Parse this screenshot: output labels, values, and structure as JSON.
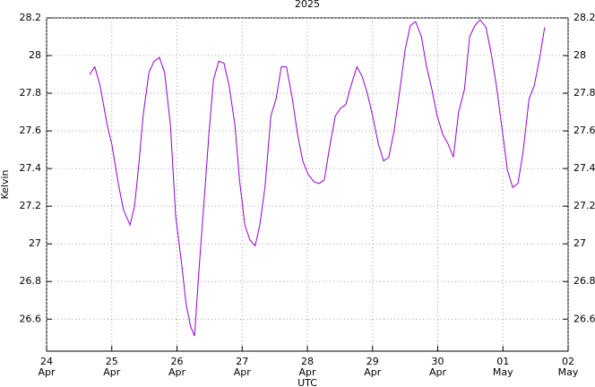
{
  "chart_data": {
    "type": "line",
    "title": "2025",
    "xlabel": "UTC",
    "ylabel": "Kelvin",
    "xlim": [
      0,
      8
    ],
    "xticks": [
      {
        "value": 0,
        "label": "24 Apr"
      },
      {
        "value": 1,
        "label": "25 Apr"
      },
      {
        "value": 2,
        "label": "26 Apr"
      },
      {
        "value": 3,
        "label": "27 Apr"
      },
      {
        "value": 4,
        "label": "28 Apr"
      },
      {
        "value": 5,
        "label": "29 Apr"
      },
      {
        "value": 6,
        "label": "30 Apr"
      },
      {
        "value": 7,
        "label": "01 May"
      },
      {
        "value": 8,
        "label": "02 May"
      }
    ],
    "ylim": [
      26.43,
      28.2
    ],
    "yticks": [
      26.6,
      26.8,
      27,
      27.2,
      27.4,
      27.6,
      27.8,
      28,
      28.2
    ],
    "grid": true,
    "series": [
      {
        "color": "#9400d3",
        "x": [
          0.66,
          0.74,
          0.82,
          0.93,
          1.0,
          1.1,
          1.18,
          1.28,
          1.35,
          1.42,
          1.48,
          1.57,
          1.65,
          1.73,
          1.81,
          1.9,
          1.98,
          2.08,
          2.14,
          2.21,
          2.27,
          2.34,
          2.42,
          2.49,
          2.56,
          2.64,
          2.72,
          2.8,
          2.89,
          2.96,
          3.04,
          3.12,
          3.2,
          3.27,
          3.35,
          3.44,
          3.52,
          3.6,
          3.68,
          3.77,
          3.85,
          3.93,
          4.01,
          4.1,
          4.18,
          4.26,
          4.34,
          4.43,
          4.51,
          4.59,
          4.67,
          4.76,
          4.84,
          4.92,
          5.0,
          5.09,
          5.17,
          5.25,
          5.33,
          5.42,
          5.5,
          5.58,
          5.66,
          5.75,
          5.83,
          5.91,
          5.99,
          6.08,
          6.16,
          6.24,
          6.32,
          6.41,
          6.49,
          6.57,
          6.65,
          6.74,
          6.82,
          6.9,
          6.98,
          7.07,
          7.15,
          7.23,
          7.31,
          7.4,
          7.48,
          7.56,
          7.64
        ],
        "values": [
          27.9,
          27.94,
          27.84,
          27.63,
          27.53,
          27.32,
          27.18,
          27.1,
          27.2,
          27.44,
          27.68,
          27.91,
          27.97,
          27.99,
          27.91,
          27.63,
          27.15,
          26.87,
          26.68,
          26.56,
          26.51,
          26.87,
          27.25,
          27.58,
          27.87,
          27.97,
          27.96,
          27.84,
          27.63,
          27.34,
          27.1,
          27.02,
          26.99,
          27.1,
          27.3,
          27.68,
          27.77,
          27.94,
          27.94,
          27.77,
          27.58,
          27.44,
          27.37,
          27.33,
          27.32,
          27.34,
          27.51,
          27.68,
          27.72,
          27.74,
          27.84,
          27.94,
          27.89,
          27.8,
          27.68,
          27.53,
          27.44,
          27.46,
          27.6,
          27.82,
          28.03,
          28.16,
          28.18,
          28.1,
          27.94,
          27.82,
          27.68,
          27.58,
          27.53,
          27.46,
          27.7,
          27.82,
          28.1,
          28.16,
          28.19,
          28.15,
          28.01,
          27.84,
          27.63,
          27.39,
          27.3,
          27.32,
          27.49,
          27.77,
          27.84,
          27.98,
          28.15
        ]
      }
    ]
  }
}
